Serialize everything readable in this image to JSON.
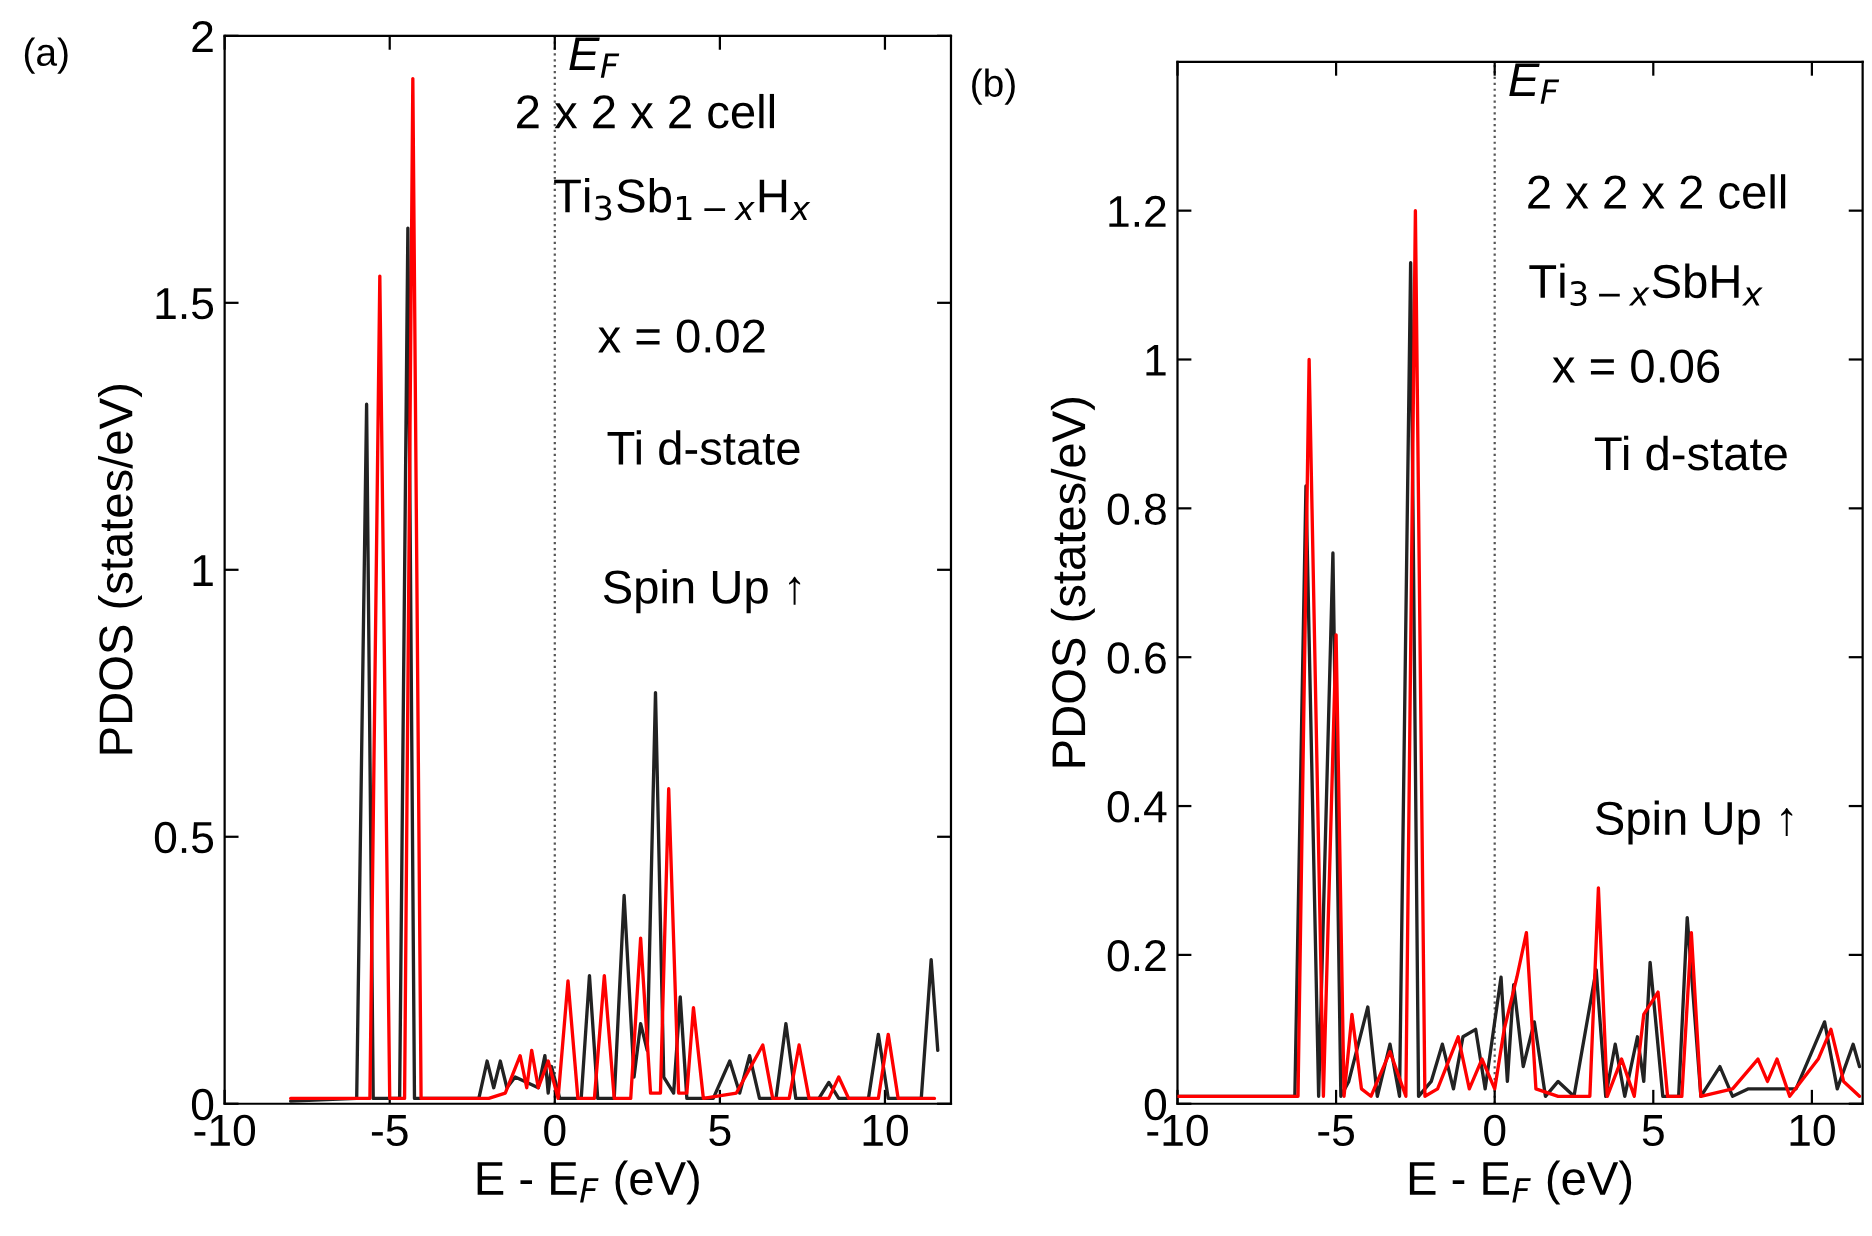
{
  "chart_data": [
    {
      "type": "line",
      "xlabel": "E - E$_{F}$ (eV)",
      "ylabel": "PDOS (states/eV)",
      "annotations": [
        "(a)",
        "2 x 2 x 2 cell",
        "Ti$_{3}$Sb$_{1−x}$H$_{x}$",
        "x = 0.02",
        "Ti d-state",
        "Spin Up ↑"
      ],
      "xlim": [
        -10,
        12
      ],
      "ylim": [
        0,
        2
      ],
      "xticks": [
        -10,
        -5,
        0,
        5,
        10
      ],
      "yticks": [
        0,
        0.5,
        1,
        1.5,
        2
      ],
      "ref_lines": [
        {
          "axis": "x",
          "value": 0,
          "label": "E$_{F}$",
          "line_style": "dotted"
        }
      ],
      "series": [
        {
          "color": "#222222",
          "x": [
            -8,
            -6.0,
            -5.7,
            -5.5,
            -4.7,
            -4.45,
            -4.25,
            -3,
            -2.3,
            -2.05,
            -1.85,
            -1.65,
            -1.45,
            -1.2,
            -0.5,
            -0.3,
            -0.2,
            -0.1,
            0.15,
            0.8,
            1.05,
            1.3,
            1.8,
            2.1,
            2.4,
            2.6,
            2.8,
            3.05,
            3.3,
            3.6,
            3.8,
            4.0,
            4.8,
            5.3,
            5.6,
            5.9,
            6.2,
            6.7,
            7.0,
            7.3,
            8.0,
            8.3,
            8.6,
            9.5,
            9.8,
            10.1,
            11.1,
            11.4,
            11.6
          ],
          "values": [
            0.005,
            0.01,
            1.31,
            0.01,
            0.01,
            1.64,
            0.01,
            0.01,
            0.01,
            0.08,
            0.03,
            0.08,
            0.03,
            0.05,
            0.03,
            0.09,
            0.02,
            0.07,
            0.01,
            0.01,
            0.24,
            0.01,
            0.01,
            0.39,
            0.05,
            0.15,
            0.1,
            0.77,
            0.05,
            0.02,
            0.2,
            0.01,
            0.01,
            0.08,
            0.02,
            0.09,
            0.01,
            0.01,
            0.15,
            0.01,
            0.01,
            0.04,
            0.01,
            0.01,
            0.13,
            0.01,
            0.01,
            0.27,
            0.1
          ]
        },
        {
          "color": "#ff0000",
          "x": [
            -8,
            -5.6,
            -5.3,
            -5.0,
            -4.55,
            -4.3,
            -4.05,
            -2,
            -1.5,
            -1.05,
            -0.85,
            -0.7,
            -0.5,
            -0.2,
            0.1,
            0.4,
            0.7,
            1.2,
            1.5,
            1.8,
            2.3,
            2.6,
            2.9,
            3.2,
            3.45,
            3.75,
            4.0,
            4.2,
            4.5,
            5.5,
            6.3,
            6.6,
            7.1,
            7.4,
            7.7,
            8.3,
            8.6,
            8.9,
            9.8,
            10.1,
            10.4,
            11.5
          ],
          "values": [
            0.01,
            0.01,
            1.55,
            0.01,
            0.01,
            1.92,
            0.01,
            0.01,
            0.02,
            0.09,
            0.03,
            0.1,
            0.03,
            0.08,
            0.01,
            0.23,
            0.01,
            0.01,
            0.24,
            0.01,
            0.01,
            0.31,
            0.02,
            0.02,
            0.59,
            0.02,
            0.02,
            0.18,
            0.01,
            0.02,
            0.11,
            0.01,
            0.01,
            0.11,
            0.01,
            0.01,
            0.05,
            0.01,
            0.01,
            0.13,
            0.01,
            0.01
          ]
        }
      ]
    },
    {
      "type": "line",
      "xlabel": "E - E$_{F}$ (eV)",
      "ylabel": "PDOS (states/eV)",
      "annotations": [
        "(b)",
        "2 x 2 x 2 cell",
        "Ti$_{3−x}$SbH$_{x}$",
        "x = 0.06",
        "Ti d-state",
        "Spin Up ↑"
      ],
      "xlim": [
        -10,
        11.6
      ],
      "ylim": [
        0,
        1.4
      ],
      "xticks": [
        -10,
        -5,
        0,
        5,
        10
      ],
      "yticks": [
        0,
        0.2,
        0.4,
        0.6,
        0.8,
        1,
        1.2
      ],
      "ref_lines": [
        {
          "axis": "x",
          "value": 0,
          "label": "E$_{F}$",
          "line_style": "dotted"
        }
      ],
      "series": [
        {
          "color": "#222222",
          "x": [
            -10,
            -6.3,
            -5.95,
            -5.55,
            -5.1,
            -4.85,
            -4.6,
            -4.0,
            -3.7,
            -3.3,
            -3.0,
            -2.65,
            -2.4,
            -2.0,
            -1.65,
            -1.3,
            -1.0,
            -0.6,
            -0.3,
            0.2,
            0.4,
            0.6,
            0.9,
            1.25,
            1.6,
            2.0,
            2.5,
            3.2,
            3.5,
            3.8,
            4.1,
            4.5,
            4.7,
            4.9,
            5.3,
            5.8,
            6.07,
            6.5,
            7.1,
            7.5,
            8.0,
            9.5,
            10.4,
            10.8,
            11.3,
            11.5
          ],
          "values": [
            0.01,
            0.01,
            0.83,
            0.01,
            0.74,
            0.01,
            0.03,
            0.13,
            0.01,
            0.08,
            0.01,
            1.13,
            0.01,
            0.03,
            0.08,
            0.02,
            0.09,
            0.1,
            0.02,
            0.17,
            0.03,
            0.16,
            0.05,
            0.11,
            0.01,
            0.03,
            0.01,
            0.18,
            0.01,
            0.08,
            0.01,
            0.09,
            0.03,
            0.19,
            0.01,
            0.01,
            0.25,
            0.01,
            0.05,
            0.01,
            0.02,
            0.02,
            0.11,
            0.02,
            0.08,
            0.05
          ]
        },
        {
          "color": "#ff0000",
          "x": [
            -10,
            -6.2,
            -5.85,
            -5.4,
            -5.0,
            -4.75,
            -4.5,
            -4.2,
            -3.9,
            -3.3,
            -2.8,
            -2.5,
            -2.2,
            -1.8,
            -1.15,
            -0.8,
            -0.4,
            0.0,
            0.3,
            0.7,
            1.0,
            1.3,
            2.0,
            3.0,
            3.27,
            3.55,
            4.0,
            4.4,
            4.7,
            5.15,
            5.45,
            5.9,
            6.2,
            6.5,
            7.5,
            8.3,
            8.6,
            8.9,
            9.3,
            10.2,
            10.6,
            11.0,
            11.5
          ],
          "values": [
            0.01,
            0.01,
            1.0,
            0.01,
            0.63,
            0.01,
            0.12,
            0.02,
            0.01,
            0.07,
            0.01,
            1.2,
            0.01,
            0.02,
            0.09,
            0.02,
            0.06,
            0.02,
            0.1,
            0.17,
            0.23,
            0.02,
            0.01,
            0.01,
            0.29,
            0.01,
            0.06,
            0.01,
            0.12,
            0.15,
            0.01,
            0.01,
            0.23,
            0.01,
            0.02,
            0.06,
            0.03,
            0.06,
            0.01,
            0.06,
            0.1,
            0.03,
            0.01
          ]
        }
      ]
    }
  ]
}
